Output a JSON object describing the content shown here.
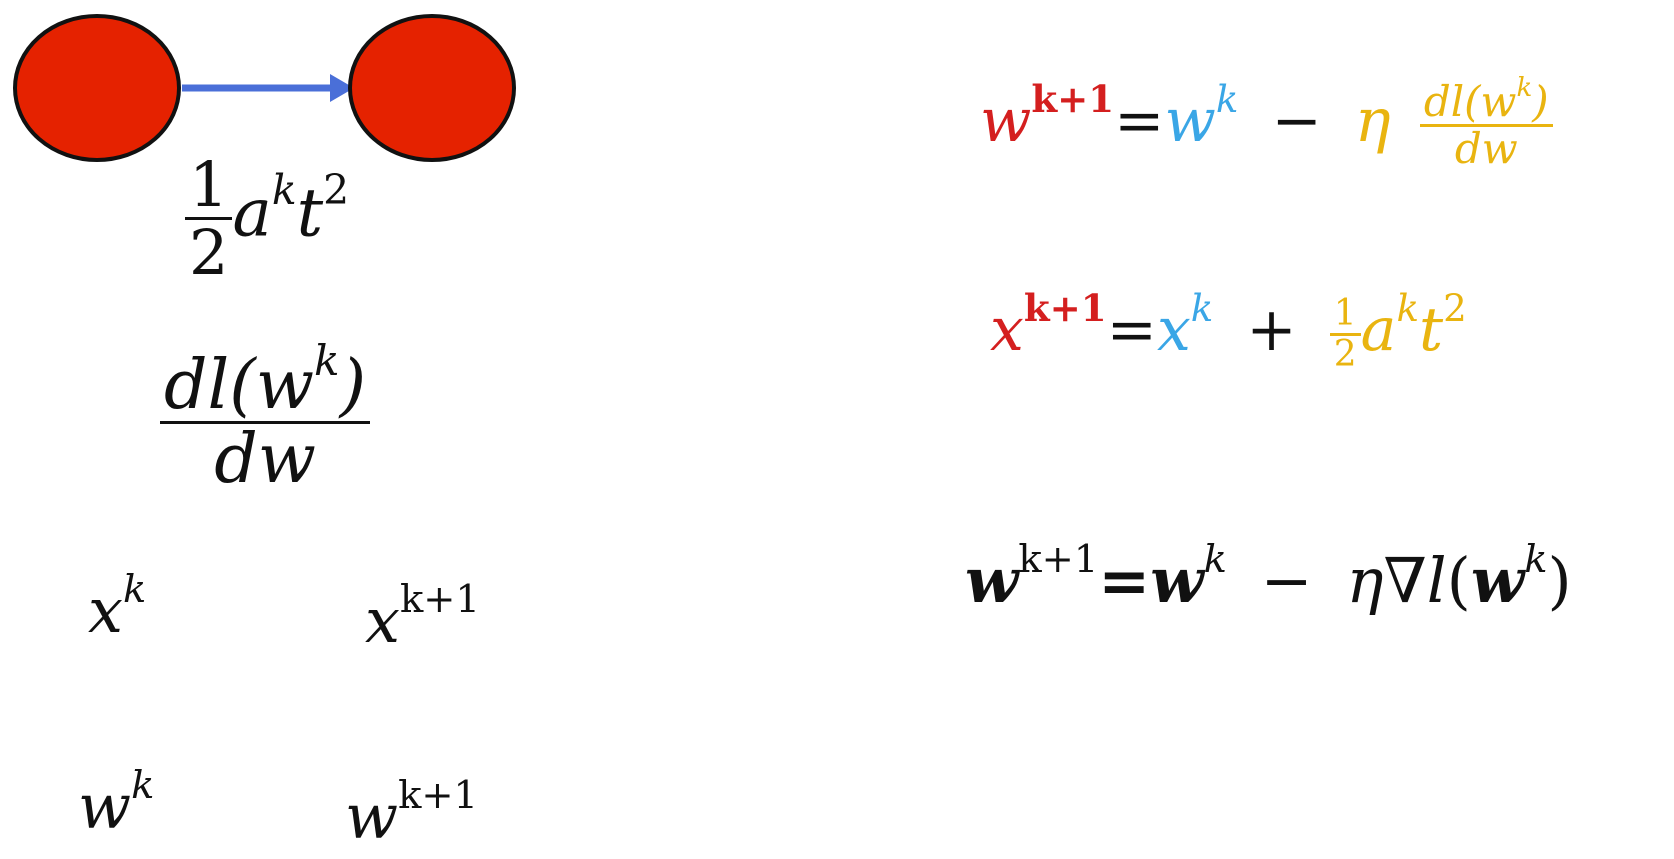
{
  "colors": {
    "node_fill": "#e52200",
    "node_stroke": "#111111",
    "arrow": "#4a6fd8",
    "red": "#d41f1f",
    "blue": "#3aa6e6",
    "yellow": "#e9b410",
    "black": "#111111"
  },
  "symbols": {
    "w": "w",
    "x": "x",
    "k": "k",
    "k_plus_1": "k+1",
    "a": "a",
    "t": "t",
    "two": "2",
    "one": "1",
    "equals": "=",
    "minus": "−",
    "plus": "+",
    "eta": "η",
    "nabla": "∇",
    "l": "l",
    "dl_open": "dl(",
    "close_paren": ")",
    "dw": "dw"
  }
}
